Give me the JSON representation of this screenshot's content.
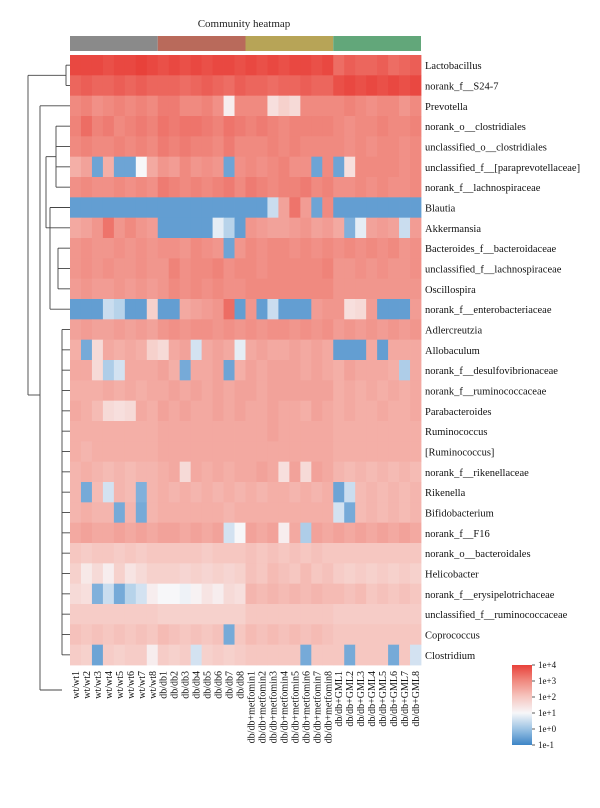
{
  "chart_data": {
    "type": "heatmap",
    "title": "Community heatmap",
    "group_colors": [
      "#8a8a8a",
      "#b96a5b",
      "#b7a457",
      "#62a77a"
    ],
    "rows": [
      "Lactobacillus",
      "norank_f__S24-7",
      "Prevotella",
      "norank_o__clostridiales",
      "unclassified_o__clostridiales",
      "unclassified_f__[paraprevotellaceae]",
      "norank_f__lachnospiraceae",
      "Blautia",
      "Akkermansia",
      "Bacteroides_f__bacteroidaceae",
      "unclassified_f__lachnospiraceae",
      "Oscillospira",
      "norank_f__enterobacteriaceae",
      "Adlercreutzia",
      "Allobaculum",
      "norank_f__desulfovibrionaceae",
      "norank_f__ruminococcaceae",
      "Parabacteroides",
      "Ruminococcus",
      "[Ruminococcus]",
      "norank_f__rikenellaceae",
      "Rikenella",
      "Bifidobacterium",
      "norank_f__F16",
      "norank_o__bacteroidales",
      "Helicobacter",
      "norank_f__erysipelotrichaceae",
      "unclassified_f__ruminococcaceae",
      "Coprococcus",
      "Clostridium"
    ],
    "columns": [
      "wt/wt1",
      "wt/wt2",
      "wt/wt3",
      "wt/wt4",
      "wt/wt5",
      "wt/wt6",
      "wt/wt7",
      "wt/wt8",
      "db/db1",
      "db/db2",
      "db/db3",
      "db/db4",
      "db/db5",
      "db/db6",
      "db/db7",
      "db/db8",
      "db/db+metfomin1",
      "db/db+metfomin2",
      "db/db+metfomin3",
      "db/db+metfomin4",
      "db/db+metfomin5",
      "db/db+metfomin6",
      "db/db+metfomin7",
      "db/db+metfomin8",
      "db/db+GML1",
      "db/db+GML2",
      "db/db+GML3",
      "db/db+GML4",
      "db/db+GML5",
      "db/db+GML6",
      "db/db+GML7",
      "db/db+GML8"
    ],
    "column_groups": [
      {
        "start": 0,
        "end": 7
      },
      {
        "start": 8,
        "end": 15
      },
      {
        "start": 16,
        "end": 23
      },
      {
        "start": 24,
        "end": 31
      }
    ],
    "colorbar": {
      "labels": [
        "1e+4",
        "1e+3",
        "1e+2",
        "1e+1",
        "1e+0",
        "1e-1"
      ],
      "stops": [
        "#e8413a",
        "#f08a80",
        "#f6c7c1",
        "#f7f7f9",
        "#9cc3e4",
        "#3d85c6"
      ]
    },
    "values": [
      [
        3.9,
        3.9,
        3.9,
        3.8,
        3.9,
        3.9,
        4.0,
        3.9,
        3.8,
        3.9,
        3.8,
        3.9,
        3.8,
        3.9,
        3.9,
        3.8,
        3.9,
        3.8,
        3.9,
        3.8,
        3.9,
        3.9,
        3.8,
        3.9,
        3.4,
        3.6,
        3.5,
        3.5,
        3.6,
        3.4,
        3.5,
        3.6
      ],
      [
        3.5,
        3.6,
        3.5,
        3.5,
        3.6,
        3.5,
        3.6,
        3.5,
        3.5,
        3.5,
        3.4,
        3.5,
        3.6,
        3.5,
        3.4,
        3.6,
        3.5,
        3.5,
        3.4,
        3.5,
        3.5,
        3.6,
        3.5,
        3.5,
        3.8,
        3.9,
        3.8,
        3.9,
        3.8,
        3.9,
        3.8,
        3.9
      ],
      [
        3.0,
        3.1,
        2.9,
        3.0,
        3.1,
        3.0,
        3.1,
        3.0,
        3.2,
        3.2,
        3.0,
        3.0,
        3.1,
        2.9,
        1.2,
        3.0,
        3.0,
        3.0,
        1.5,
        1.8,
        1.6,
        3.0,
        3.0,
        3.0,
        3.0,
        3.1,
        3.0,
        2.9,
        3.0,
        3.0,
        2.8,
        3.0
      ],
      [
        3.1,
        3.4,
        3.1,
        3.2,
        3.0,
        3.1,
        3.2,
        3.1,
        3.3,
        3.2,
        3.3,
        3.3,
        3.2,
        3.1,
        3.3,
        3.2,
        3.1,
        3.2,
        3.1,
        3.0,
        3.1,
        3.1,
        3.1,
        3.1,
        3.0,
        2.9,
        3.0,
        3.0,
        3.1,
        3.0,
        3.0,
        3.1
      ],
      [
        3.0,
        3.1,
        3.0,
        3.0,
        3.1,
        3.0,
        3.1,
        3.0,
        3.2,
        3.1,
        3.2,
        3.1,
        3.1,
        3.0,
        3.2,
        3.0,
        3.0,
        3.0,
        3.1,
        3.0,
        3.1,
        3.0,
        3.0,
        3.0,
        3.0,
        2.9,
        3.0,
        2.9,
        3.0,
        3.0,
        2.9,
        3.0
      ],
      [
        2.4,
        2.6,
        -0.5,
        2.4,
        -0.5,
        -0.5,
        1.0,
        2.5,
        2.8,
        2.7,
        3.0,
        2.8,
        2.9,
        2.8,
        -0.5,
        2.9,
        3.0,
        2.9,
        3.0,
        3.1,
        2.9,
        2.9,
        -0.5,
        3.0,
        -0.5,
        1.5,
        3.0,
        3.0,
        3.0,
        3.0,
        2.9,
        3.0
      ],
      [
        2.9,
        3.0,
        2.9,
        2.9,
        3.0,
        2.9,
        3.0,
        2.9,
        3.2,
        3.1,
        3.0,
        3.1,
        3.0,
        3.1,
        3.2,
        3.0,
        3.2,
        3.1,
        3.0,
        3.1,
        3.1,
        3.2,
        3.0,
        3.1,
        2.9,
        2.9,
        3.0,
        2.9,
        3.0,
        2.9,
        2.9,
        3.0
      ],
      [
        -0.6,
        -0.6,
        -0.6,
        -0.6,
        -0.6,
        -0.6,
        -0.6,
        -0.6,
        -0.6,
        -0.6,
        -0.6,
        -0.6,
        -0.6,
        -0.6,
        -0.6,
        -0.6,
        -0.6,
        -0.6,
        0.5,
        2.6,
        3.3,
        2.7,
        -0.5,
        3.0,
        -0.6,
        -0.6,
        -0.6,
        -0.6,
        -0.6,
        -0.6,
        -0.6,
        -0.6
      ],
      [
        2.5,
        2.6,
        2.8,
        3.3,
        2.8,
        3.0,
        2.8,
        2.7,
        -0.6,
        -0.6,
        -0.6,
        -0.6,
        -0.6,
        0.8,
        0.3,
        -0.6,
        2.8,
        2.7,
        2.6,
        2.6,
        2.7,
        2.8,
        2.6,
        2.7,
        2.5,
        -0.3,
        0.8,
        2.6,
        2.7,
        2.6,
        0.5,
        2.7
      ],
      [
        2.8,
        2.9,
        2.8,
        2.8,
        2.9,
        2.8,
        2.9,
        2.8,
        2.9,
        2.9,
        2.8,
        3.0,
        2.9,
        2.8,
        -0.5,
        2.8,
        3.0,
        2.9,
        3.0,
        3.0,
        2.9,
        3.0,
        2.9,
        3.0,
        2.9,
        3.0,
        2.9,
        3.0,
        2.9,
        3.0,
        2.8,
        2.9
      ],
      [
        2.8,
        2.9,
        2.8,
        2.9,
        2.8,
        2.8,
        2.9,
        2.8,
        2.8,
        3.1,
        2.9,
        3.0,
        3.0,
        3.1,
        2.9,
        3.0,
        3.0,
        2.9,
        3.0,
        3.0,
        3.0,
        3.0,
        3.0,
        3.1,
        2.8,
        2.8,
        2.9,
        2.8,
        2.9,
        2.8,
        2.8,
        2.9
      ],
      [
        2.7,
        2.8,
        2.7,
        2.7,
        2.8,
        2.7,
        2.8,
        2.7,
        2.8,
        3.0,
        2.9,
        3.0,
        2.9,
        3.0,
        2.9,
        2.9,
        3.0,
        3.0,
        3.0,
        3.0,
        3.0,
        3.0,
        3.0,
        3.0,
        2.8,
        2.8,
        2.8,
        2.8,
        2.8,
        2.8,
        2.8,
        2.8
      ],
      [
        -0.6,
        -0.6,
        -0.6,
        0.5,
        0.3,
        -0.6,
        -0.6,
        1.8,
        -0.6,
        -0.6,
        2.5,
        2.6,
        2.7,
        2.8,
        3.4,
        -0.6,
        2.8,
        -0.6,
        0.5,
        -0.6,
        -0.6,
        -0.6,
        2.7,
        2.8,
        2.8,
        1.5,
        1.6,
        2.7,
        -0.6,
        -0.6,
        -0.6,
        2.7
      ],
      [
        2.6,
        2.7,
        2.6,
        2.6,
        2.7,
        2.6,
        2.7,
        2.6,
        2.8,
        2.9,
        2.8,
        2.9,
        2.9,
        2.8,
        2.9,
        2.8,
        2.9,
        2.8,
        2.9,
        2.9,
        2.8,
        2.9,
        2.8,
        2.9,
        2.7,
        2.8,
        2.7,
        2.8,
        2.7,
        2.8,
        2.7,
        2.8
      ],
      [
        2.4,
        -0.4,
        1.6,
        2.5,
        2.4,
        2.5,
        2.4,
        1.8,
        1.6,
        2.5,
        2.6,
        0.6,
        2.5,
        2.6,
        2.5,
        0.8,
        2.5,
        2.6,
        2.5,
        2.5,
        2.6,
        2.5,
        2.6,
        2.5,
        -0.6,
        -0.6,
        -0.6,
        2.5,
        -0.6,
        2.5,
        2.5,
        2.5
      ],
      [
        2.5,
        2.5,
        1.6,
        0.2,
        0.6,
        2.5,
        2.5,
        2.5,
        2.6,
        2.4,
        -0.4,
        2.5,
        2.5,
        2.6,
        -0.5,
        2.4,
        2.6,
        2.5,
        2.6,
        2.6,
        2.6,
        2.5,
        2.6,
        2.5,
        2.4,
        2.6,
        2.5,
        2.5,
        2.5,
        2.4,
        0.2,
        2.5
      ],
      [
        2.4,
        2.4,
        2.4,
        2.5,
        2.4,
        2.5,
        2.4,
        2.5,
        2.5,
        2.6,
        2.5,
        2.6,
        2.5,
        2.6,
        2.5,
        2.6,
        2.6,
        2.5,
        2.6,
        2.6,
        2.6,
        2.6,
        2.6,
        2.6,
        2.4,
        2.5,
        2.4,
        2.5,
        2.4,
        2.5,
        2.4,
        2.5
      ],
      [
        2.5,
        2.4,
        2.2,
        1.6,
        1.5,
        1.6,
        2.5,
        2.4,
        2.6,
        2.5,
        2.6,
        2.5,
        2.5,
        2.6,
        2.5,
        2.6,
        2.5,
        2.5,
        2.6,
        2.5,
        2.5,
        2.4,
        2.6,
        2.5,
        2.4,
        2.5,
        2.4,
        2.4,
        2.5,
        2.4,
        2.4,
        2.5
      ],
      [
        2.4,
        2.4,
        2.4,
        2.4,
        2.4,
        2.4,
        2.4,
        2.4,
        2.5,
        2.5,
        2.5,
        2.5,
        2.5,
        2.5,
        2.5,
        2.5,
        2.5,
        2.5,
        2.6,
        2.5,
        2.5,
        2.5,
        2.5,
        2.5,
        2.4,
        2.4,
        2.4,
        2.4,
        2.4,
        2.4,
        2.4,
        2.4
      ],
      [
        2.4,
        2.3,
        2.4,
        2.4,
        2.4,
        2.4,
        2.4,
        2.4,
        2.5,
        2.5,
        2.5,
        2.5,
        2.5,
        2.5,
        2.5,
        2.5,
        2.5,
        2.5,
        2.5,
        2.5,
        2.5,
        2.5,
        2.5,
        2.5,
        2.4,
        2.4,
        2.4,
        2.4,
        2.4,
        2.4,
        2.4,
        2.4
      ],
      [
        2.3,
        2.4,
        2.3,
        2.2,
        2.3,
        2.2,
        2.3,
        2.3,
        2.4,
        2.5,
        1.6,
        2.5,
        2.4,
        2.5,
        2.4,
        2.5,
        2.5,
        2.6,
        2.5,
        1.5,
        2.6,
        1.6,
        2.6,
        2.5,
        2.3,
        2.2,
        2.3,
        2.2,
        2.3,
        2.2,
        2.3,
        2.2
      ],
      [
        2.3,
        -0.4,
        2.2,
        0.6,
        2.3,
        2.2,
        -0.3,
        2.3,
        2.4,
        2.3,
        2.4,
        2.3,
        2.4,
        2.3,
        2.4,
        2.3,
        2.4,
        2.3,
        2.4,
        2.4,
        2.3,
        2.4,
        2.3,
        2.4,
        -0.5,
        0.5,
        2.2,
        2.3,
        2.2,
        2.3,
        2.2,
        2.3
      ],
      [
        2.3,
        2.4,
        2.3,
        2.3,
        -0.4,
        2.3,
        -0.4,
        2.3,
        2.4,
        2.4,
        2.4,
        2.4,
        2.4,
        2.4,
        2.3,
        2.4,
        2.4,
        2.4,
        2.4,
        2.4,
        2.4,
        2.4,
        2.4,
        2.4,
        0.6,
        -0.4,
        2.2,
        2.3,
        2.2,
        2.3,
        2.2,
        2.3
      ],
      [
        2.5,
        2.6,
        2.5,
        2.5,
        2.6,
        2.5,
        2.6,
        2.5,
        2.6,
        2.6,
        2.5,
        2.6,
        2.5,
        2.6,
        0.6,
        1.0,
        2.6,
        2.5,
        2.6,
        1.2,
        2.5,
        0.2,
        2.6,
        2.5,
        2.6,
        2.5,
        2.6,
        2.5,
        2.6,
        2.5,
        2.6,
        2.5
      ],
      [
        2.0,
        1.9,
        2.0,
        2.0,
        1.9,
        2.0,
        1.9,
        2.0,
        2.0,
        2.0,
        2.0,
        2.0,
        1.9,
        2.0,
        2.0,
        2.0,
        2.1,
        2.0,
        2.1,
        2.0,
        2.1,
        2.0,
        2.1,
        2.0,
        2.0,
        2.0,
        2.0,
        2.0,
        2.0,
        2.0,
        2.0,
        2.0
      ],
      [
        1.8,
        1.3,
        1.6,
        1.2,
        1.8,
        1.4,
        1.6,
        1.8,
        1.8,
        1.8,
        1.7,
        1.8,
        1.7,
        1.8,
        1.7,
        1.8,
        2.1,
        2.0,
        2.2,
        2.1,
        2.0,
        2.2,
        2.0,
        2.1,
        1.9,
        1.8,
        1.9,
        1.8,
        1.9,
        1.8,
        1.9,
        1.8
      ],
      [
        1.6,
        1.5,
        -0.3,
        0.5,
        -0.4,
        0.3,
        0.6,
        1.2,
        1.0,
        1.0,
        0.9,
        1.1,
        1.4,
        1.2,
        1.6,
        1.5,
        2.3,
        2.2,
        2.3,
        2.2,
        2.3,
        2.2,
        2.3,
        2.2,
        2.2,
        2.1,
        2.2,
        2.0,
        2.1,
        2.0,
        2.1,
        2.0
      ],
      [
        1.9,
        1.9,
        1.9,
        1.9,
        1.9,
        1.9,
        1.9,
        1.9,
        1.8,
        1.8,
        1.8,
        1.8,
        1.8,
        1.8,
        1.8,
        1.8,
        2.0,
        2.0,
        2.0,
        2.0,
        2.0,
        2.0,
        2.0,
        2.0,
        1.9,
        1.9,
        1.9,
        1.9,
        1.9,
        1.9,
        1.9,
        1.9
      ],
      [
        2.1,
        2.0,
        2.1,
        2.0,
        2.1,
        2.0,
        2.1,
        2.0,
        2.2,
        2.1,
        2.0,
        2.1,
        2.0,
        2.1,
        -0.4,
        2.0,
        2.2,
        2.1,
        2.2,
        2.1,
        2.2,
        2.1,
        2.2,
        2.1,
        2.0,
        2.0,
        2.0,
        2.0,
        2.0,
        2.0,
        2.0,
        2.0
      ],
      [
        1.9,
        1.8,
        -0.5,
        1.9,
        1.8,
        1.9,
        1.9,
        1.2,
        1.9,
        1.8,
        1.9,
        0.6,
        1.8,
        1.9,
        1.8,
        1.9,
        2.0,
        2.0,
        2.0,
        2.0,
        2.0,
        -0.4,
        2.0,
        2.0,
        2.0,
        -0.4,
        2.0,
        2.0,
        2.0,
        -0.4,
        2.0,
        0.6
      ]
    ]
  }
}
